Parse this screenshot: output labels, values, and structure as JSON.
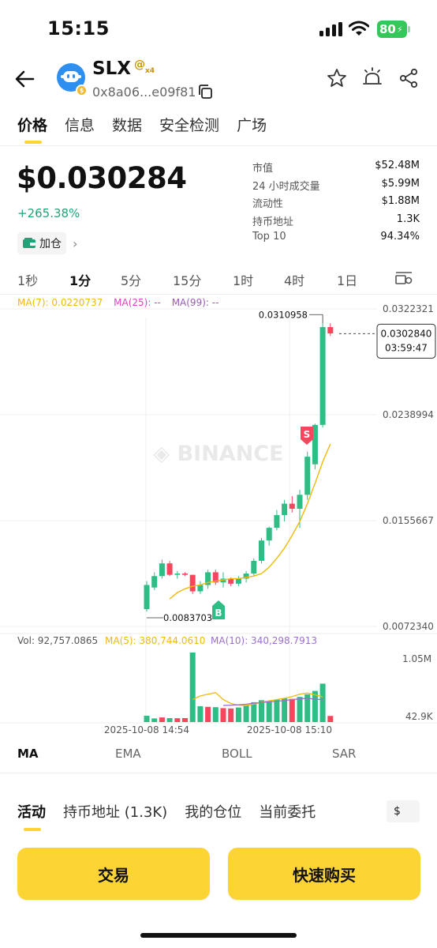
{
  "status_bar": {
    "time": "15:15",
    "battery": "80"
  },
  "token": {
    "symbol": "SLX",
    "at_badge": "@",
    "multiplier": "x4",
    "address": "0x8a06...e09f81"
  },
  "tabs": [
    "价格",
    "信息",
    "数据",
    "安全检测",
    "广场"
  ],
  "price": {
    "value": "$0.030284",
    "change": "+265.38%",
    "watchlist_label": "加仓"
  },
  "stats": [
    {
      "label": "市值",
      "value": "$52.48M"
    },
    {
      "label": "24 小时成交量",
      "value": "$5.99M"
    },
    {
      "label": "流动性",
      "value": "$1.88M"
    },
    {
      "label": "持币地址",
      "value": "1.3K"
    },
    {
      "label": "Top 10",
      "value": "94.34%"
    }
  ],
  "intervals": [
    "1秒",
    "1分",
    "5分",
    "15分",
    "1时",
    "4时",
    "1日"
  ],
  "active_interval": "1分",
  "ma_legend": {
    "ma7": "MA(7): 0.0220737",
    "ma25": "MA(25): --",
    "ma99": "MA(99): --"
  },
  "colors": {
    "up": "#2ebd85",
    "down": "#f6465d",
    "accent": "#fcd535",
    "ma7": "#f0b90b",
    "ma25": "#e040c0",
    "ma99": "#9b59b6",
    "ma10_vol": "#9b6fcf"
  },
  "chart_data": {
    "type": "candlestick",
    "price_axis_labels": [
      "0.0322321",
      "0.0238994",
      "0.0155667",
      "0.0072340"
    ],
    "price_axis_values": [
      0.0322321,
      0.0238994,
      0.0155667,
      0.007234
    ],
    "high_label": "0.0310958",
    "low_label": "0.0083703",
    "current_price_label": "0.0302840",
    "countdown_label": "03:59:47",
    "watermark": "BINANCE",
    "buy_marker": "B",
    "sell_marker": "S",
    "time_labels": [
      "2025-10-08 14:54",
      "2025-10-08 15:10"
    ],
    "candles": [
      {
        "o": 0.0086,
        "h": 0.0108,
        "l": 0.0084,
        "c": 0.0105
      },
      {
        "o": 0.0103,
        "h": 0.0115,
        "l": 0.0101,
        "c": 0.0112
      },
      {
        "o": 0.0112,
        "h": 0.0125,
        "l": 0.011,
        "c": 0.0122
      },
      {
        "o": 0.0122,
        "h": 0.0124,
        "l": 0.0112,
        "c": 0.0113
      },
      {
        "o": 0.0113,
        "h": 0.0116,
        "l": 0.011,
        "c": 0.0114
      },
      {
        "o": 0.0114,
        "h": 0.0115,
        "l": 0.0112,
        "c": 0.0113
      },
      {
        "o": 0.0113,
        "h": 0.0113,
        "l": 0.0098,
        "c": 0.01
      },
      {
        "o": 0.01,
        "h": 0.0108,
        "l": 0.0098,
        "c": 0.0105
      },
      {
        "o": 0.0105,
        "h": 0.0117,
        "l": 0.0102,
        "c": 0.0115
      },
      {
        "o": 0.0115,
        "h": 0.0117,
        "l": 0.0105,
        "c": 0.0107
      },
      {
        "o": 0.0107,
        "h": 0.0115,
        "l": 0.0103,
        "c": 0.011
      },
      {
        "o": 0.011,
        "h": 0.0111,
        "l": 0.0104,
        "c": 0.0106
      },
      {
        "o": 0.0106,
        "h": 0.0112,
        "l": 0.0104,
        "c": 0.011
      },
      {
        "o": 0.011,
        "h": 0.0116,
        "l": 0.0107,
        "c": 0.0114
      },
      {
        "o": 0.0114,
        "h": 0.0126,
        "l": 0.0112,
        "c": 0.0124
      },
      {
        "o": 0.0124,
        "h": 0.0142,
        "l": 0.0122,
        "c": 0.014
      },
      {
        "o": 0.014,
        "h": 0.0151,
        "l": 0.0136,
        "c": 0.015
      },
      {
        "o": 0.015,
        "h": 0.0164,
        "l": 0.0148,
        "c": 0.016
      },
      {
        "o": 0.016,
        "h": 0.0172,
        "l": 0.0155,
        "c": 0.0169
      },
      {
        "o": 0.0169,
        "h": 0.0175,
        "l": 0.0162,
        "c": 0.0165
      },
      {
        "o": 0.0165,
        "h": 0.018,
        "l": 0.015,
        "c": 0.0176
      },
      {
        "o": 0.0176,
        "h": 0.021,
        "l": 0.0172,
        "c": 0.0206
      },
      {
        "o": 0.02,
        "h": 0.0232,
        "l": 0.0196,
        "c": 0.0231
      },
      {
        "o": 0.0231,
        "h": 0.0311,
        "l": 0.0229,
        "c": 0.0308
      },
      {
        "o": 0.0308,
        "h": 0.0311,
        "l": 0.0301,
        "c": 0.0303
      }
    ],
    "ma7": [
      0.0094,
      0.0099,
      0.0102,
      0.0104,
      0.0105,
      0.0107,
      0.0108,
      0.0109,
      0.011,
      0.011,
      0.0111,
      0.0112,
      0.0114,
      0.0119,
      0.0126,
      0.0134,
      0.0144,
      0.0155,
      0.0169,
      0.0185,
      0.0202,
      0.0216
    ],
    "volume_legend": {
      "vol": "Vol: 92,757.0865",
      "ma5": "MA(5): 380,744.0610",
      "ma10": "MA(10): 340,298.7913"
    },
    "volume_axis_labels": [
      "1.05M",
      "42.9K"
    ],
    "volume_axis_values": [
      1050000,
      42900
    ],
    "volumes": [
      {
        "v": 95000,
        "up": true
      },
      {
        "v": 55000,
        "up": true
      },
      {
        "v": 70000,
        "up": false
      },
      {
        "v": 60000,
        "up": true
      },
      {
        "v": 58000,
        "up": false
      },
      {
        "v": 60000,
        "up": false
      },
      {
        "v": 1050000,
        "up": true
      },
      {
        "v": 240000,
        "up": true
      },
      {
        "v": 230000,
        "up": false
      },
      {
        "v": 225000,
        "up": true
      },
      {
        "v": 210000,
        "up": false
      },
      {
        "v": 205000,
        "up": false
      },
      {
        "v": 220000,
        "up": true
      },
      {
        "v": 250000,
        "up": true
      },
      {
        "v": 300000,
        "up": true
      },
      {
        "v": 330000,
        "up": true
      },
      {
        "v": 320000,
        "up": true
      },
      {
        "v": 340000,
        "up": true
      },
      {
        "v": 360000,
        "up": true
      },
      {
        "v": 350000,
        "up": false
      },
      {
        "v": 380000,
        "up": true
      },
      {
        "v": 420000,
        "up": true
      },
      {
        "v": 470000,
        "up": true
      },
      {
        "v": 580000,
        "up": true
      },
      {
        "v": 92757,
        "up": false
      }
    ],
    "vol_ma5": [
      340000,
      395000,
      420000,
      445000,
      340000,
      280000,
      255000,
      250000,
      270000,
      300000,
      320000,
      340000,
      360000,
      385000,
      420000,
      440000,
      410000,
      380000
    ],
    "vol_ma10": [
      250000,
      255000,
      260000,
      270000,
      285000,
      295000,
      305000,
      315000,
      325000,
      340000,
      350000,
      360000,
      345000,
      340000
    ]
  },
  "indicators": [
    "MA",
    "EMA",
    "BOLL",
    "SAR"
  ],
  "bottom_tabs": [
    "活动",
    "持币地址 (1.3K)",
    "我的仓位",
    "当前委托"
  ],
  "currency": "$",
  "actions": {
    "trade": "交易",
    "quick_buy": "快速购买"
  }
}
